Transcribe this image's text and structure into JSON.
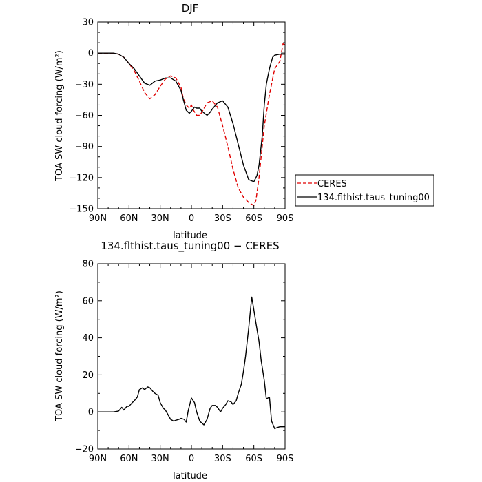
{
  "chart_data": [
    {
      "type": "line",
      "title": "DJF",
      "xlabel": "latitude",
      "ylabel": "TOA SW cloud forcing (W/m²)",
      "xlim": [
        90,
        -90
      ],
      "ylim": [
        -150,
        30
      ],
      "xticks": [
        90,
        60,
        30,
        0,
        -30,
        -60,
        -90
      ],
      "xtick_labels": [
        "90N",
        "60N",
        "30N",
        "0",
        "30S",
        "60S",
        "90S"
      ],
      "yticks": [
        30,
        0,
        -30,
        -60,
        -90,
        -120,
        -150
      ],
      "ytick_labels": [
        "30",
        "0",
        "−30",
        "−60",
        "−90",
        "−120",
        "−150"
      ],
      "legend_position": "outside-right",
      "series": [
        {
          "name": "CERES",
          "color": "#e00000",
          "dash": "dashed",
          "x": [
            90,
            85,
            80,
            75,
            70,
            65,
            60,
            55,
            50,
            45,
            40,
            35,
            30,
            25,
            20,
            15,
            10,
            8,
            5,
            2,
            0,
            -2,
            -5,
            -8,
            -10,
            -15,
            -20,
            -25,
            -30,
            -35,
            -40,
            -45,
            -50,
            -55,
            -60,
            -62,
            -65,
            -68,
            -70,
            -75,
            -80,
            -85,
            -88,
            -90
          ],
          "y": [
            0,
            0,
            0,
            0,
            -1,
            -4,
            -10,
            -17,
            -27,
            -38,
            -44,
            -40,
            -32,
            -25,
            -22,
            -24,
            -33,
            -43,
            -50,
            -53,
            -50,
            -55,
            -60,
            -60,
            -57,
            -48,
            -46,
            -52,
            -70,
            -90,
            -112,
            -130,
            -139,
            -144,
            -147,
            -142,
            -120,
            -90,
            -70,
            -40,
            -15,
            -8,
            9,
            8
          ]
        },
        {
          "name": "134.flthist.taus_tuning00",
          "color": "#000000",
          "dash": "solid",
          "x": [
            90,
            85,
            80,
            75,
            70,
            65,
            60,
            55,
            50,
            45,
            40,
            35,
            30,
            25,
            20,
            15,
            10,
            8,
            5,
            2,
            0,
            -3,
            -5,
            -8,
            -10,
            -15,
            -18,
            -20,
            -25,
            -30,
            -35,
            -40,
            -45,
            -50,
            -55,
            -60,
            -63,
            -65,
            -68,
            -70,
            -72,
            -75,
            -78,
            -80,
            -85,
            -90
          ],
          "y": [
            0,
            0,
            0,
            0,
            -1,
            -4,
            -10,
            -15,
            -22,
            -29,
            -31,
            -27,
            -26,
            -24,
            -24,
            -27,
            -36,
            -44,
            -55,
            -58,
            -56,
            -52,
            -53,
            -53,
            -56,
            -60,
            -57,
            -54,
            -48,
            -46,
            -52,
            -68,
            -88,
            -108,
            -122,
            -124,
            -118,
            -108,
            -80,
            -50,
            -30,
            -15,
            -4,
            -2,
            -1,
            -1
          ]
        }
      ]
    },
    {
      "type": "line",
      "title": "134.flthist.taus_tuning00 − CERES",
      "xlabel": "latitude",
      "ylabel": "TOA SW cloud forcing (W/m²)",
      "xlim": [
        90,
        -90
      ],
      "ylim": [
        -20,
        80
      ],
      "xticks": [
        90,
        60,
        30,
        0,
        -30,
        -60,
        -90
      ],
      "xtick_labels": [
        "90N",
        "60N",
        "30N",
        "0",
        "30S",
        "60S",
        "90S"
      ],
      "yticks": [
        80,
        60,
        40,
        20,
        0,
        -20
      ],
      "ytick_labels": [
        "80",
        "60",
        "40",
        "20",
        "0",
        "−20"
      ],
      "series": [
        {
          "color": "#000000",
          "dash": "solid",
          "x": [
            90,
            85,
            80,
            75,
            70,
            67,
            65,
            62,
            60,
            57,
            55,
            52,
            50,
            47,
            45,
            42,
            40,
            37,
            35,
            32,
            30,
            27,
            25,
            22,
            20,
            17,
            15,
            12,
            10,
            7,
            5,
            3,
            0,
            -3,
            -5,
            -8,
            -10,
            -12,
            -15,
            -18,
            -20,
            -23,
            -25,
            -28,
            -30,
            -33,
            -35,
            -38,
            -40,
            -43,
            -45,
            -48,
            -50,
            -52,
            -55,
            -58,
            -60,
            -62,
            -65,
            -67,
            -70,
            -72,
            -75,
            -77,
            -80,
            -82,
            -85,
            -88,
            -90
          ],
          "y": [
            0,
            0,
            0,
            0,
            0.5,
            2.5,
            1,
            3,
            3,
            5,
            6,
            8,
            12,
            13,
            12,
            13.5,
            13,
            11,
            10,
            9,
            5,
            2,
            1,
            -2,
            -4,
            -5,
            -4.5,
            -4,
            -3.5,
            -4,
            -5.5,
            1,
            7.5,
            5,
            0,
            -5,
            -6,
            -7,
            -4,
            2,
            3.5,
            3.5,
            2.5,
            0,
            2,
            4,
            6,
            5.5,
            4,
            6,
            10,
            15,
            22,
            30,
            45,
            62,
            55,
            48,
            38,
            28,
            17,
            7,
            8,
            -5,
            -9,
            -8.5,
            -8,
            -8,
            -8
          ]
        }
      ]
    }
  ]
}
